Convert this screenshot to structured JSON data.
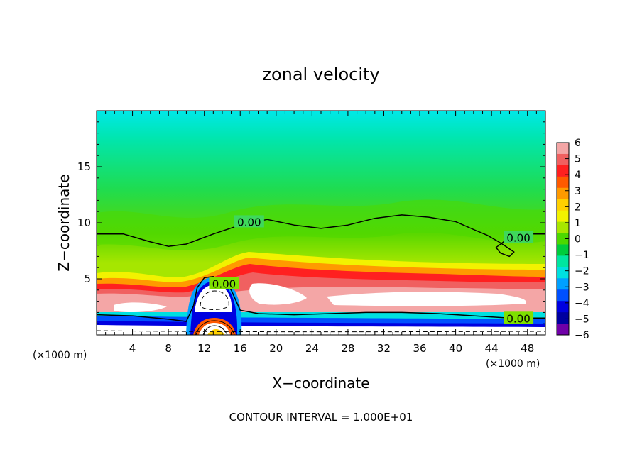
{
  "chart_data": {
    "type": "heatmap",
    "title": "zonal velocity",
    "xlabel": "X−coordinate",
    "ylabel": "Z−coordinate",
    "x_unit_left": "(×1000 m)",
    "x_unit_right": "(×1000 m)",
    "xlim": [
      0,
      50
    ],
    "ylim": [
      0,
      20
    ],
    "x_ticks": [
      "4",
      "8",
      "12",
      "16",
      "20",
      "24",
      "28",
      "32",
      "36",
      "40",
      "44",
      "48"
    ],
    "y_ticks": [
      "5",
      "10",
      "15"
    ],
    "footer": "CONTOUR INTERVAL = 1.000E+01",
    "colorbar": {
      "ticks": [
        "6",
        "5",
        "4",
        "3",
        "2",
        "1",
        "0",
        "−1",
        "−2",
        "−3",
        "−4",
        "−5",
        "−6"
      ],
      "colors": [
        "#f4a6a6",
        "#f06060",
        "#ff2020",
        "#ff5a00",
        "#ff9a00",
        "#ffd000",
        "#f2f200",
        "#a8e600",
        "#4cd800",
        "#00cc3c",
        "#00e6a0",
        "#00e0e0",
        "#00a0ff",
        "#0050ff",
        "#0000e0",
        "#0000a0",
        "#7000a8"
      ]
    },
    "contour_label": "0.00",
    "zero_contour_upper": {
      "x": [
        0,
        3,
        6,
        8,
        10,
        13,
        16,
        19,
        22,
        25,
        28,
        31,
        34,
        37,
        40,
        42,
        43.5,
        45,
        46.5,
        46,
        45,
        44.5,
        46,
        48,
        50
      ],
      "z": [
        9,
        9,
        8.3,
        7.9,
        8.1,
        9.0,
        9.8,
        10.3,
        9.8,
        9.5,
        9.8,
        10.4,
        10.7,
        10.5,
        10.1,
        9.4,
        8.9,
        8.2,
        7.4,
        7.0,
        7.3,
        7.8,
        8.7,
        9.0,
        9.0
      ],
      "labels": [
        {
          "x": 17,
          "z": 10.1
        },
        {
          "x": 47,
          "z": 8.7
        }
      ]
    },
    "zero_contour_lower": {
      "x": [
        0,
        4,
        8,
        10,
        10.8,
        11.2,
        12,
        13,
        14,
        15,
        16,
        18,
        22,
        26,
        30,
        34,
        38,
        42,
        46,
        50
      ],
      "z": [
        1.8,
        1.7,
        1.4,
        1.2,
        2.6,
        4.2,
        5.1,
        5.2,
        4.8,
        4.0,
        2.2,
        1.9,
        1.8,
        1.9,
        2.0,
        2.0,
        1.9,
        1.7,
        1.5,
        1.5
      ],
      "labels": [
        {
          "x": 14.2,
          "z": 4.6
        },
        {
          "x": 47,
          "z": 1.5
        }
      ]
    }
  }
}
